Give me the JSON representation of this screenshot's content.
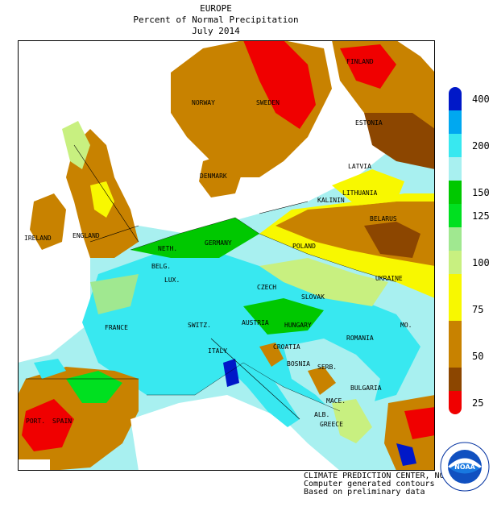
{
  "title": {
    "line1": "EUROPE",
    "line2": "Percent of Normal Precipitation",
    "line3": "July 2014"
  },
  "legend": [
    {
      "label": "400",
      "color": "#0018c8"
    },
    {
      "label": "",
      "color": "#00a8f0"
    },
    {
      "label": "200",
      "color": "#38e8f0"
    },
    {
      "label": "",
      "color": "#a8f0f0"
    },
    {
      "label": "150",
      "color": "#00c800"
    },
    {
      "label": "125",
      "color": "#00e020"
    },
    {
      "label": "",
      "color": "#a0e890"
    },
    {
      "label": "100",
      "color": "#c8f080"
    },
    {
      "label": "",
      "color": "#f8f800"
    },
    {
      "label": "75",
      "color": "#f8f800"
    },
    {
      "label": "",
      "color": "#c88200"
    },
    {
      "label": "50",
      "color": "#c88200"
    },
    {
      "label": "",
      "color": "#8c4600"
    },
    {
      "label": "25",
      "color": "#f00000"
    }
  ],
  "countries": [
    {
      "name": "NORWAY"
    },
    {
      "name": "SWEDEN"
    },
    {
      "name": "FINLAND"
    },
    {
      "name": "ESTONIA"
    },
    {
      "name": "LATVIA"
    },
    {
      "name": "LITHUANIA"
    },
    {
      "name": "KALININ"
    },
    {
      "name": "BELARUS"
    },
    {
      "name": "DENMARK"
    },
    {
      "name": "IRELAND"
    },
    {
      "name": "ENGLAND"
    },
    {
      "name": "GERMANY"
    },
    {
      "name": "POLAND"
    },
    {
      "name": "UKRAINE"
    },
    {
      "name": "NETH."
    },
    {
      "name": "BELG."
    },
    {
      "name": "LUX."
    },
    {
      "name": "CZECH"
    },
    {
      "name": "SLOVAK"
    },
    {
      "name": "FRANCE"
    },
    {
      "name": "SWITZ."
    },
    {
      "name": "AUSTRIA"
    },
    {
      "name": "HUNGARY"
    },
    {
      "name": "ROMANIA"
    },
    {
      "name": "MO."
    },
    {
      "name": "CROATIA"
    },
    {
      "name": "ITALY"
    },
    {
      "name": "BOSNIA"
    },
    {
      "name": "SERB."
    },
    {
      "name": "BULGARIA"
    },
    {
      "name": "MACE."
    },
    {
      "name": "ALB."
    },
    {
      "name": "GREECE"
    },
    {
      "name": "PORT."
    },
    {
      "name": "SPAIN"
    }
  ],
  "footer": {
    "line1": "CLIMATE PREDICTION CENTER, NOAA",
    "line2": "Computer generated contours",
    "line3": "Based on preliminary data"
  },
  "logo": {
    "text": "NOAA",
    "ring_text": "NATIONAL OCEANIC AND ATMOSPHERIC ADMINISTRATION · U.S. DEPARTMENT OF COMMERCE"
  }
}
